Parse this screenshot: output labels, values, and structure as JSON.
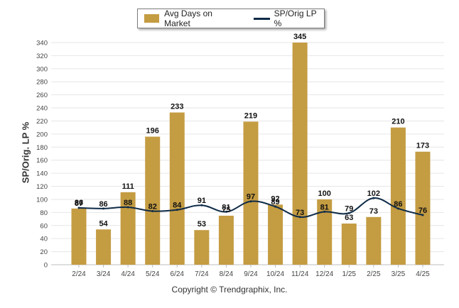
{
  "legend": {
    "bar_label": "Avg Days on Market",
    "line_label": "SP/Orig LP %"
  },
  "footer": {
    "copyright": "Copyright © Trendgraphix, Inc."
  },
  "colors": {
    "bar": "#c49c42",
    "line": "#0e2a47",
    "grid": "#e6e6e6"
  },
  "chart_data": {
    "type": "bar",
    "title": "",
    "xlabel": "",
    "ylabel": "SP/Orig. LP %",
    "ylim": [
      0,
      340
    ],
    "yticks": [
      0,
      20,
      40,
      60,
      80,
      100,
      120,
      140,
      160,
      180,
      200,
      220,
      240,
      260,
      280,
      300,
      320,
      340
    ],
    "grid": true,
    "legend_position": "top-center",
    "categories": [
      "2/24",
      "3/24",
      "4/24",
      "5/24",
      "6/24",
      "7/24",
      "8/24",
      "9/24",
      "10/24",
      "11/24",
      "12/24",
      "1/25",
      "2/25",
      "3/25",
      "4/25"
    ],
    "series": [
      {
        "name": "Avg Days on Market",
        "type": "bar",
        "values": [
          86,
          54,
          111,
          196,
          233,
          53,
          75,
          219,
          92,
          345,
          100,
          63,
          73,
          210,
          173
        ]
      },
      {
        "name": "SP/Orig LP %",
        "type": "line",
        "values": [
          87,
          86,
          88,
          82,
          84,
          91,
          81,
          97,
          89,
          73,
          81,
          79,
          102,
          86,
          76
        ]
      }
    ]
  }
}
